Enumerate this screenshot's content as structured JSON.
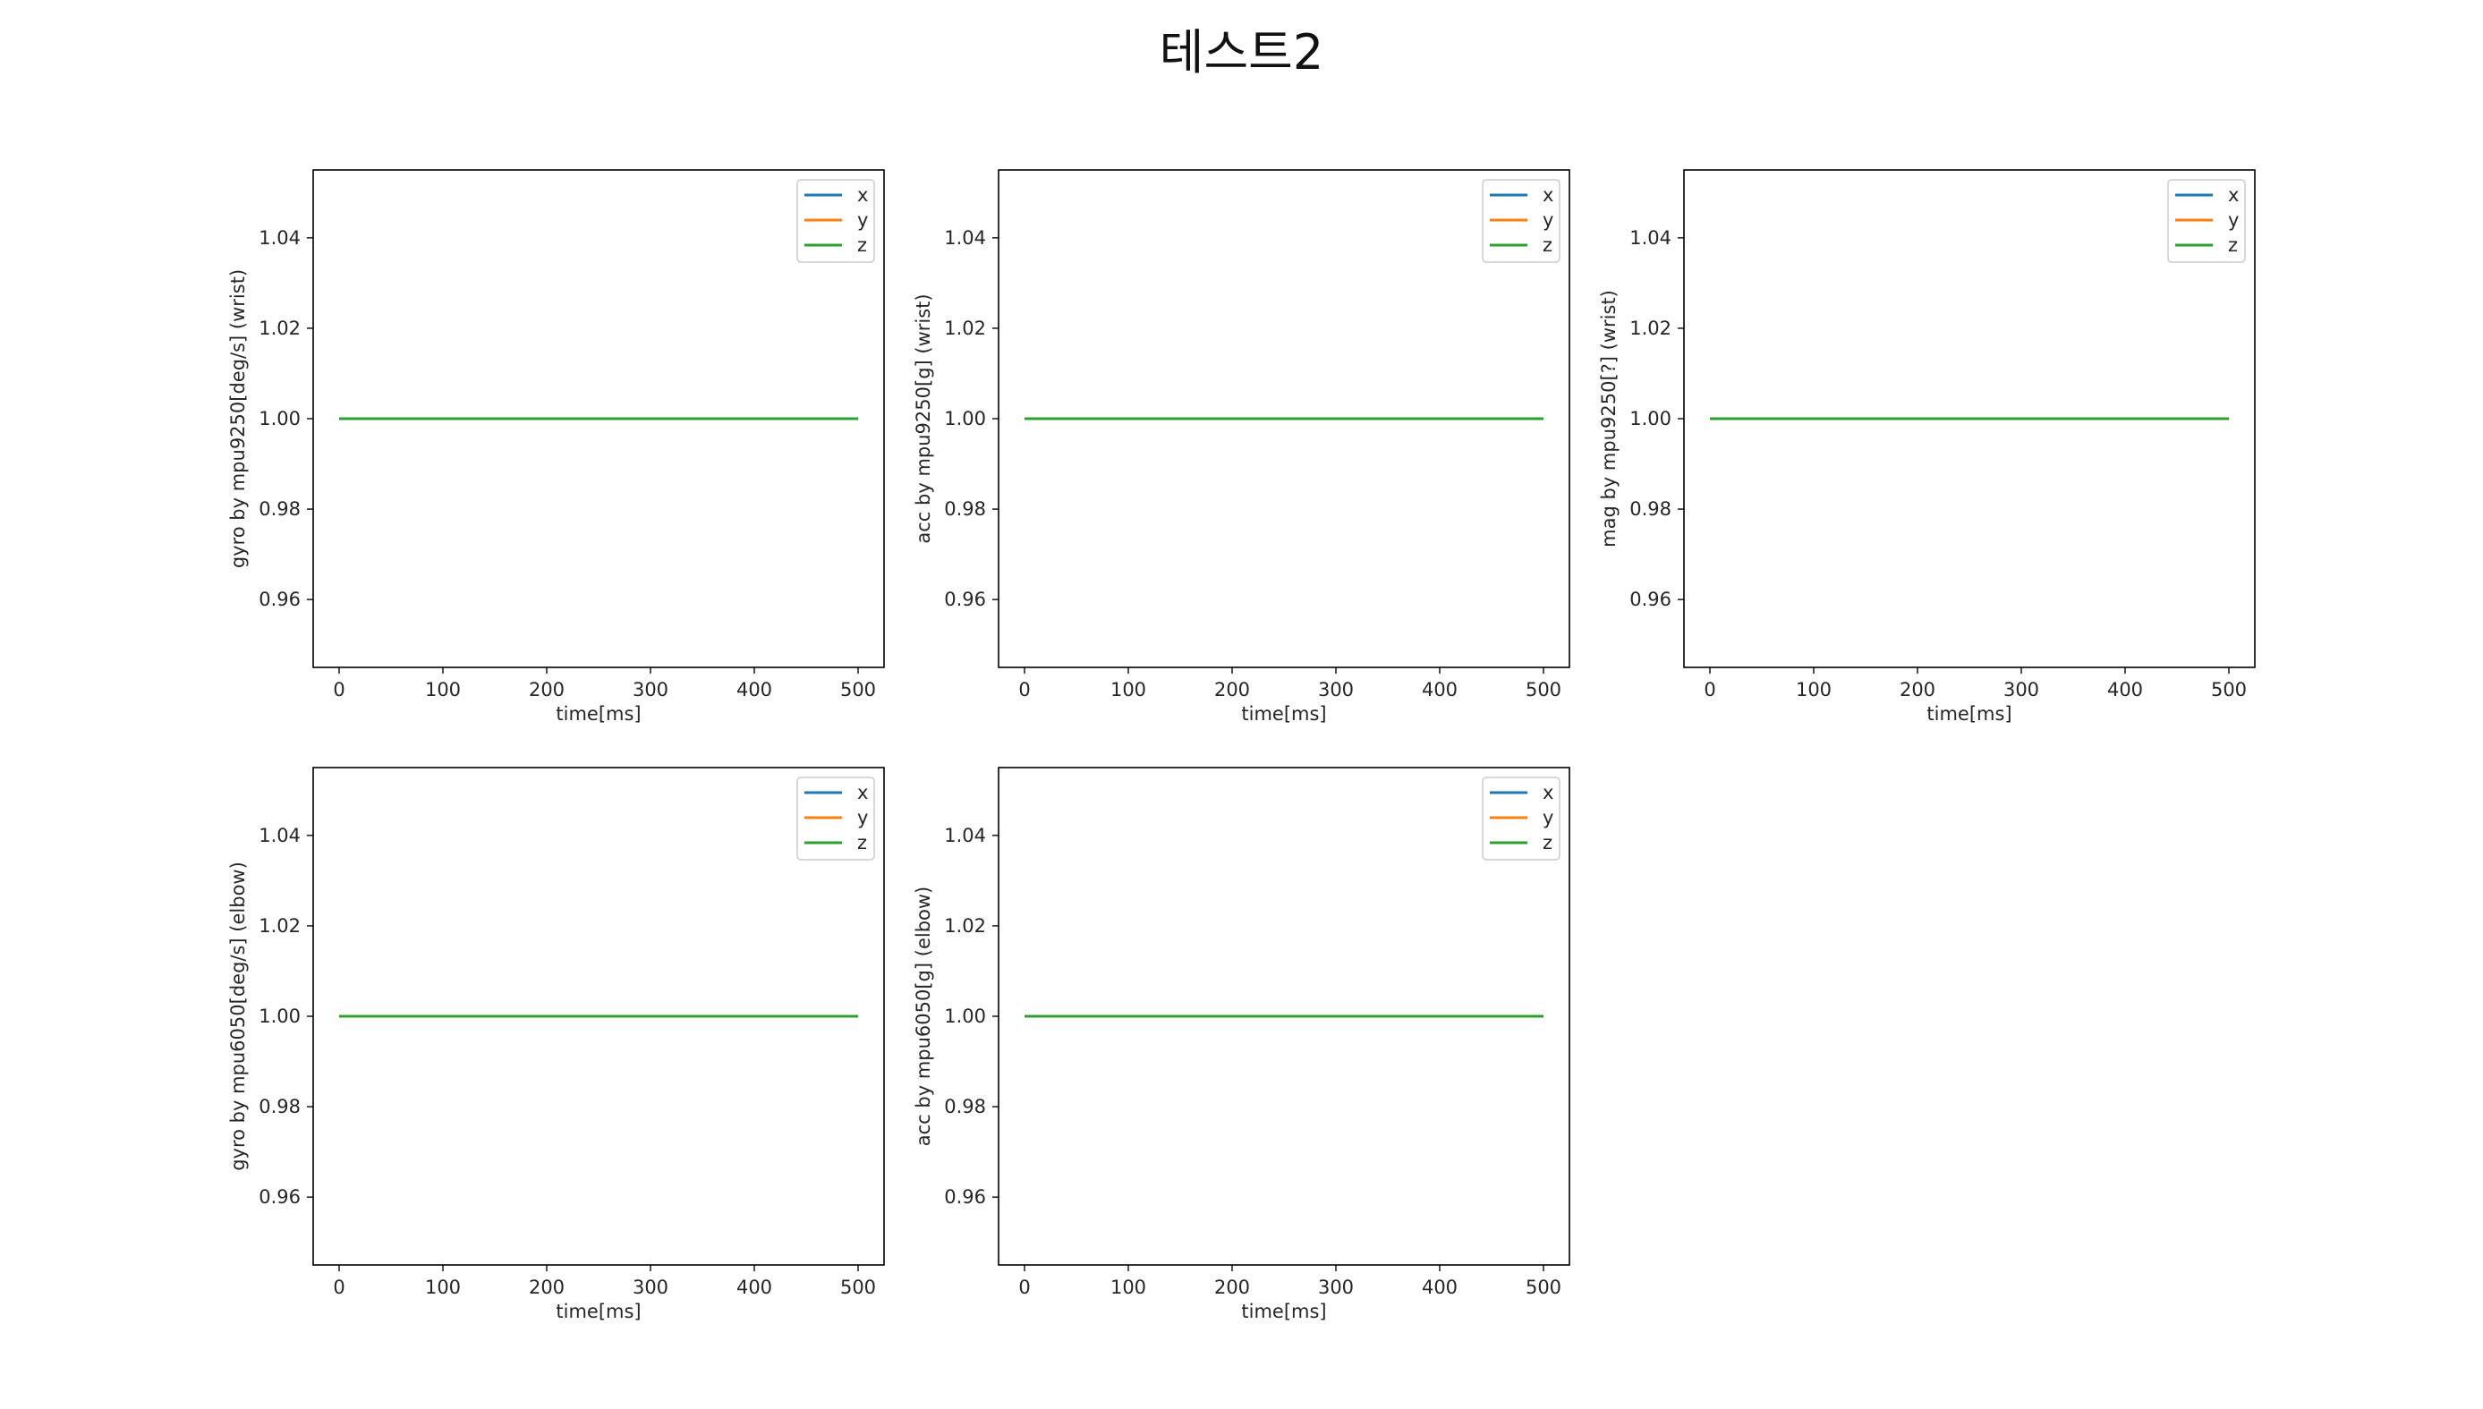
{
  "title": "테스트2",
  "colors": {
    "x": "#1f77b4",
    "y": "#ff7f0e",
    "z": "#2ca02c"
  },
  "chart_data": [
    {
      "type": "line",
      "xlabel": "time[ms]",
      "ylabel": "gyro by mpu9250[deg/s] (wrist)",
      "x": [
        0,
        500
      ],
      "xlim": [
        -25,
        525
      ],
      "ylim": [
        0.945,
        1.055
      ],
      "xticks": [
        0,
        100,
        200,
        300,
        400,
        500
      ],
      "yticks": [
        0.96,
        0.98,
        1.0,
        1.02,
        1.04
      ],
      "ytick_labels": [
        "0.96",
        "0.98",
        "1.00",
        "1.02",
        "1.04"
      ],
      "legend": "top-right",
      "series": [
        {
          "name": "x",
          "values": [
            1.0,
            1.0
          ]
        },
        {
          "name": "y",
          "values": [
            1.0,
            1.0
          ]
        },
        {
          "name": "z",
          "values": [
            1.0,
            1.0
          ]
        }
      ]
    },
    {
      "type": "line",
      "xlabel": "time[ms]",
      "ylabel": "acc by mpu9250[g] (wrist)",
      "x": [
        0,
        500
      ],
      "xlim": [
        -25,
        525
      ],
      "ylim": [
        0.945,
        1.055
      ],
      "xticks": [
        0,
        100,
        200,
        300,
        400,
        500
      ],
      "yticks": [
        0.96,
        0.98,
        1.0,
        1.02,
        1.04
      ],
      "ytick_labels": [
        "0.96",
        "0.98",
        "1.00",
        "1.02",
        "1.04"
      ],
      "legend": "top-right",
      "series": [
        {
          "name": "x",
          "values": [
            1.0,
            1.0
          ]
        },
        {
          "name": "y",
          "values": [
            1.0,
            1.0
          ]
        },
        {
          "name": "z",
          "values": [
            1.0,
            1.0
          ]
        }
      ]
    },
    {
      "type": "line",
      "xlabel": "time[ms]",
      "ylabel": "mag by mpu9250[?] (wrist)",
      "x": [
        0,
        500
      ],
      "xlim": [
        -25,
        525
      ],
      "ylim": [
        0.945,
        1.055
      ],
      "xticks": [
        0,
        100,
        200,
        300,
        400,
        500
      ],
      "yticks": [
        0.96,
        0.98,
        1.0,
        1.02,
        1.04
      ],
      "ytick_labels": [
        "0.96",
        "0.98",
        "1.00",
        "1.02",
        "1.04"
      ],
      "legend": "top-right",
      "series": [
        {
          "name": "x",
          "values": [
            1.0,
            1.0
          ]
        },
        {
          "name": "y",
          "values": [
            1.0,
            1.0
          ]
        },
        {
          "name": "z",
          "values": [
            1.0,
            1.0
          ]
        }
      ]
    },
    {
      "type": "line",
      "xlabel": "time[ms]",
      "ylabel": "gyro by mpu6050[deg/s] (elbow)",
      "x": [
        0,
        500
      ],
      "xlim": [
        -25,
        525
      ],
      "ylim": [
        0.945,
        1.055
      ],
      "xticks": [
        0,
        100,
        200,
        300,
        400,
        500
      ],
      "yticks": [
        0.96,
        0.98,
        1.0,
        1.02,
        1.04
      ],
      "ytick_labels": [
        "0.96",
        "0.98",
        "1.00",
        "1.02",
        "1.04"
      ],
      "legend": "top-right",
      "series": [
        {
          "name": "x",
          "values": [
            1.0,
            1.0
          ]
        },
        {
          "name": "y",
          "values": [
            1.0,
            1.0
          ]
        },
        {
          "name": "z",
          "values": [
            1.0,
            1.0
          ]
        }
      ]
    },
    {
      "type": "line",
      "xlabel": "time[ms]",
      "ylabel": "acc by mpu6050[g] (elbow)",
      "x": [
        0,
        500
      ],
      "xlim": [
        -25,
        525
      ],
      "ylim": [
        0.945,
        1.055
      ],
      "xticks": [
        0,
        100,
        200,
        300,
        400,
        500
      ],
      "yticks": [
        0.96,
        0.98,
        1.0,
        1.02,
        1.04
      ],
      "ytick_labels": [
        "0.96",
        "0.98",
        "1.00",
        "1.02",
        "1.04"
      ],
      "legend": "top-right",
      "series": [
        {
          "name": "x",
          "values": [
            1.0,
            1.0
          ]
        },
        {
          "name": "y",
          "values": [
            1.0,
            1.0
          ]
        },
        {
          "name": "z",
          "values": [
            1.0,
            1.0
          ]
        }
      ]
    }
  ]
}
